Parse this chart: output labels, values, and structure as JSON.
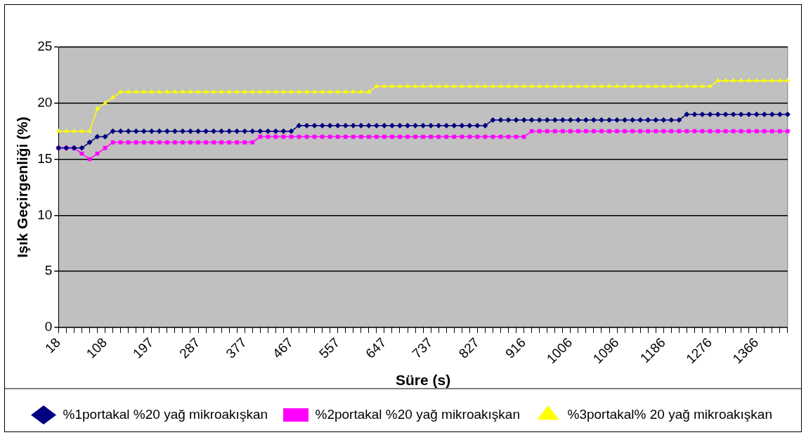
{
  "chart_data": {
    "type": "line",
    "xlabel": "Süre (s)",
    "ylabel": "Işık Geçirgenliği (%)",
    "categories": [
      "18",
      null,
      null,
      null,
      null,
      null,
      "108",
      null,
      null,
      null,
      null,
      null,
      "197",
      null,
      null,
      null,
      null,
      null,
      "287",
      null,
      null,
      null,
      null,
      null,
      "377",
      null,
      null,
      null,
      null,
      null,
      "467",
      null,
      null,
      null,
      null,
      null,
      "557",
      null,
      null,
      null,
      null,
      null,
      "647",
      null,
      null,
      null,
      null,
      null,
      "737",
      null,
      null,
      null,
      null,
      null,
      "827",
      null,
      null,
      null,
      null,
      null,
      "916",
      null,
      null,
      null,
      null,
      null,
      "1006",
      null,
      null,
      null,
      null,
      null,
      "1096",
      null,
      null,
      null,
      null,
      null,
      "1186",
      null,
      null,
      null,
      null,
      null,
      "1276",
      null,
      null,
      null,
      null,
      null,
      "1366",
      null,
      null,
      null,
      null
    ],
    "series": [
      {
        "name": "%1portakal %20 yağ mikroakışkan",
        "color": "#000080",
        "marker": "diamond",
        "values": [
          16,
          16,
          16,
          16,
          16.5,
          17,
          17,
          17.5,
          17.5,
          17.5,
          17.5,
          17.5,
          17.5,
          17.5,
          17.5,
          17.5,
          17.5,
          17.5,
          17.5,
          17.5,
          17.5,
          17.5,
          17.5,
          17.5,
          17.5,
          17.5,
          17.5,
          17.5,
          17.5,
          17.5,
          17.5,
          18,
          18,
          18,
          18,
          18,
          18,
          18,
          18,
          18,
          18,
          18,
          18,
          18,
          18,
          18,
          18,
          18,
          18,
          18,
          18,
          18,
          18,
          18,
          18,
          18,
          18.5,
          18.5,
          18.5,
          18.5,
          18.5,
          18.5,
          18.5,
          18.5,
          18.5,
          18.5,
          18.5,
          18.5,
          18.5,
          18.5,
          18.5,
          18.5,
          18.5,
          18.5,
          18.5,
          18.5,
          18.5,
          18.5,
          18.5,
          18.5,
          18.5,
          19,
          19,
          19,
          19,
          19,
          19,
          19,
          19,
          19,
          19,
          19,
          19,
          19,
          19
        ]
      },
      {
        "name": "%2portakal %20 yağ mikroakışkan",
        "color": "#ff00ff",
        "marker": "square",
        "values": [
          16,
          16,
          16,
          15.5,
          15,
          15.5,
          16,
          16.5,
          16.5,
          16.5,
          16.5,
          16.5,
          16.5,
          16.5,
          16.5,
          16.5,
          16.5,
          16.5,
          16.5,
          16.5,
          16.5,
          16.5,
          16.5,
          16.5,
          16.5,
          16.5,
          17,
          17,
          17,
          17,
          17,
          17,
          17,
          17,
          17,
          17,
          17,
          17,
          17,
          17,
          17,
          17,
          17,
          17,
          17,
          17,
          17,
          17,
          17,
          17,
          17,
          17,
          17,
          17,
          17,
          17,
          17,
          17,
          17,
          17,
          17,
          17.5,
          17.5,
          17.5,
          17.5,
          17.5,
          17.5,
          17.5,
          17.5,
          17.5,
          17.5,
          17.5,
          17.5,
          17.5,
          17.5,
          17.5,
          17.5,
          17.5,
          17.5,
          17.5,
          17.5,
          17.5,
          17.5,
          17.5,
          17.5,
          17.5,
          17.5,
          17.5,
          17.5,
          17.5,
          17.5,
          17.5,
          17.5,
          17.5,
          17.5
        ]
      },
      {
        "name": "%3portakal% 20 yağ mikroakışkan",
        "color": "#ffff00",
        "marker": "triangle",
        "values": [
          17.5,
          17.5,
          17.5,
          17.5,
          17.5,
          19.5,
          20,
          20.5,
          21,
          21,
          21,
          21,
          21,
          21,
          21,
          21,
          21,
          21,
          21,
          21,
          21,
          21,
          21,
          21,
          21,
          21,
          21,
          21,
          21,
          21,
          21,
          21,
          21,
          21,
          21,
          21,
          21,
          21,
          21,
          21,
          21,
          21.5,
          21.5,
          21.5,
          21.5,
          21.5,
          21.5,
          21.5,
          21.5,
          21.5,
          21.5,
          21.5,
          21.5,
          21.5,
          21.5,
          21.5,
          21.5,
          21.5,
          21.5,
          21.5,
          21.5,
          21.5,
          21.5,
          21.5,
          21.5,
          21.5,
          21.5,
          21.5,
          21.5,
          21.5,
          21.5,
          21.5,
          21.5,
          21.5,
          21.5,
          21.5,
          21.5,
          21.5,
          21.5,
          21.5,
          21.5,
          21.5,
          21.5,
          21.5,
          21.5,
          22,
          22,
          22,
          22,
          22,
          22,
          22,
          22,
          22,
          22
        ]
      }
    ],
    "ylim": [
      0,
      25
    ],
    "yticks": [
      0,
      5,
      10,
      15,
      20,
      25
    ],
    "grid": "y",
    "legend": "bottom",
    "line_style": "solid"
  }
}
